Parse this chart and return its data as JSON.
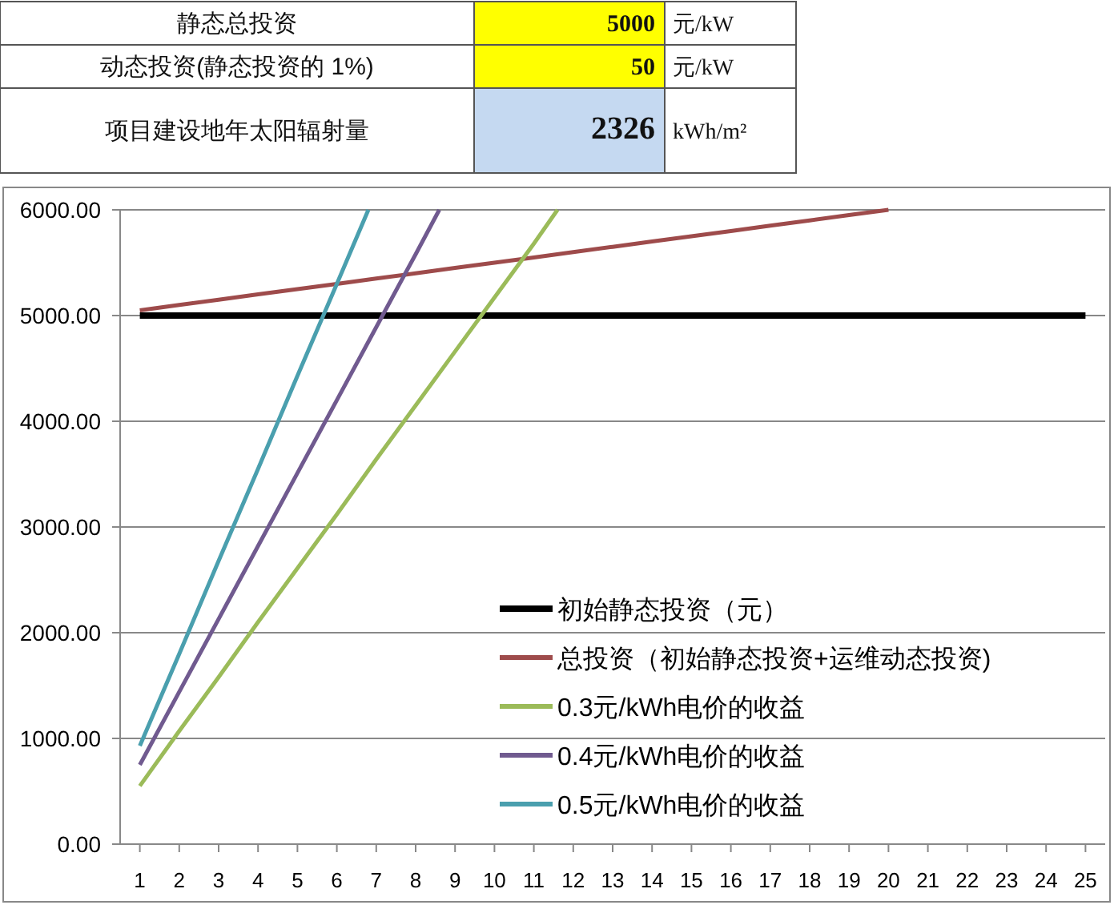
{
  "chart_data": [
    {
      "type": "other",
      "annotations": [
        "静态总投资",
        "5000",
        "元/kW",
        "动态投资(静态投资的 1%)",
        "50",
        "元/kW",
        "项目建设地年太阳辐射量",
        "2326",
        "kWh/m²"
      ]
    },
    {
      "type": "line",
      "xlim": [
        0.5,
        25.5
      ],
      "xticks": [
        1,
        2,
        3,
        4,
        5,
        6,
        7,
        8,
        9,
        10,
        11,
        12,
        13,
        14,
        15,
        16,
        17,
        18,
        19,
        20,
        21,
        22,
        23,
        24,
        25
      ],
      "ylim": [
        0,
        6000
      ],
      "yticks": [
        {
          "value": 0,
          "label": "0.00"
        },
        {
          "value": 1000,
          "label": "1000.00"
        },
        {
          "value": 2000,
          "label": "2000.00"
        },
        {
          "value": 3000,
          "label": "3000.00"
        },
        {
          "value": 4000,
          "label": "4000.00"
        },
        {
          "value": 5000,
          "label": "5000.00"
        },
        {
          "value": 6000,
          "label": "6000.00"
        }
      ],
      "grid": "y",
      "legend": "bottom right",
      "series": [
        {
          "name": "初始静态投资（元）",
          "color": "#000000",
          "x": [
            1,
            2,
            3,
            4,
            5,
            6,
            7,
            8,
            9,
            10,
            11,
            12,
            13,
            14,
            15,
            16,
            17,
            18,
            19,
            20,
            21,
            22,
            23,
            24,
            25
          ],
          "values": [
            5000,
            5000,
            5000,
            5000,
            5000,
            5000,
            5000,
            5000,
            5000,
            5000,
            5000,
            5000,
            5000,
            5000,
            5000,
            5000,
            5000,
            5000,
            5000,
            5000,
            5000,
            5000,
            5000,
            5000,
            5000
          ]
        },
        {
          "name": "总投资（初始静态投资+运维动态投资)",
          "color": "#9e4b4b",
          "x": [
            1,
            2,
            3,
            4,
            5,
            6,
            7,
            8,
            9,
            10,
            11,
            12,
            13,
            14,
            15,
            16,
            17,
            18,
            19,
            20
          ],
          "values": [
            5050,
            5100,
            5150,
            5200,
            5250,
            5300,
            5350,
            5400,
            5450,
            5500,
            5550,
            5600,
            5650,
            5700,
            5750,
            5800,
            5850,
            5900,
            5950,
            6000
          ]
        },
        {
          "name": "0.3元/kWh电价的收益",
          "color": "#9bbb59",
          "x": [
            1,
            2,
            3,
            4,
            5,
            6,
            7,
            8,
            9,
            10,
            11,
            11.6
          ],
          "values": [
            550,
            1070,
            1580,
            2100,
            2610,
            3120,
            3640,
            4150,
            4660,
            5170,
            5680,
            6000
          ]
        },
        {
          "name": "0.4元/kWh电价的收益",
          "color": "#705a8f",
          "x": [
            1,
            2,
            3,
            4,
            5,
            6,
            7,
            8,
            8.6
          ],
          "values": [
            750,
            1440,
            2130,
            2820,
            3510,
            4200,
            4890,
            5580,
            6000
          ]
        },
        {
          "name": "0.5元/kWh电价的收益",
          "color": "#4a9fae",
          "x": [
            1,
            2,
            3,
            4,
            5,
            6,
            6.8
          ],
          "values": [
            930,
            1800,
            2680,
            3550,
            4430,
            5300,
            6000
          ]
        }
      ]
    }
  ]
}
